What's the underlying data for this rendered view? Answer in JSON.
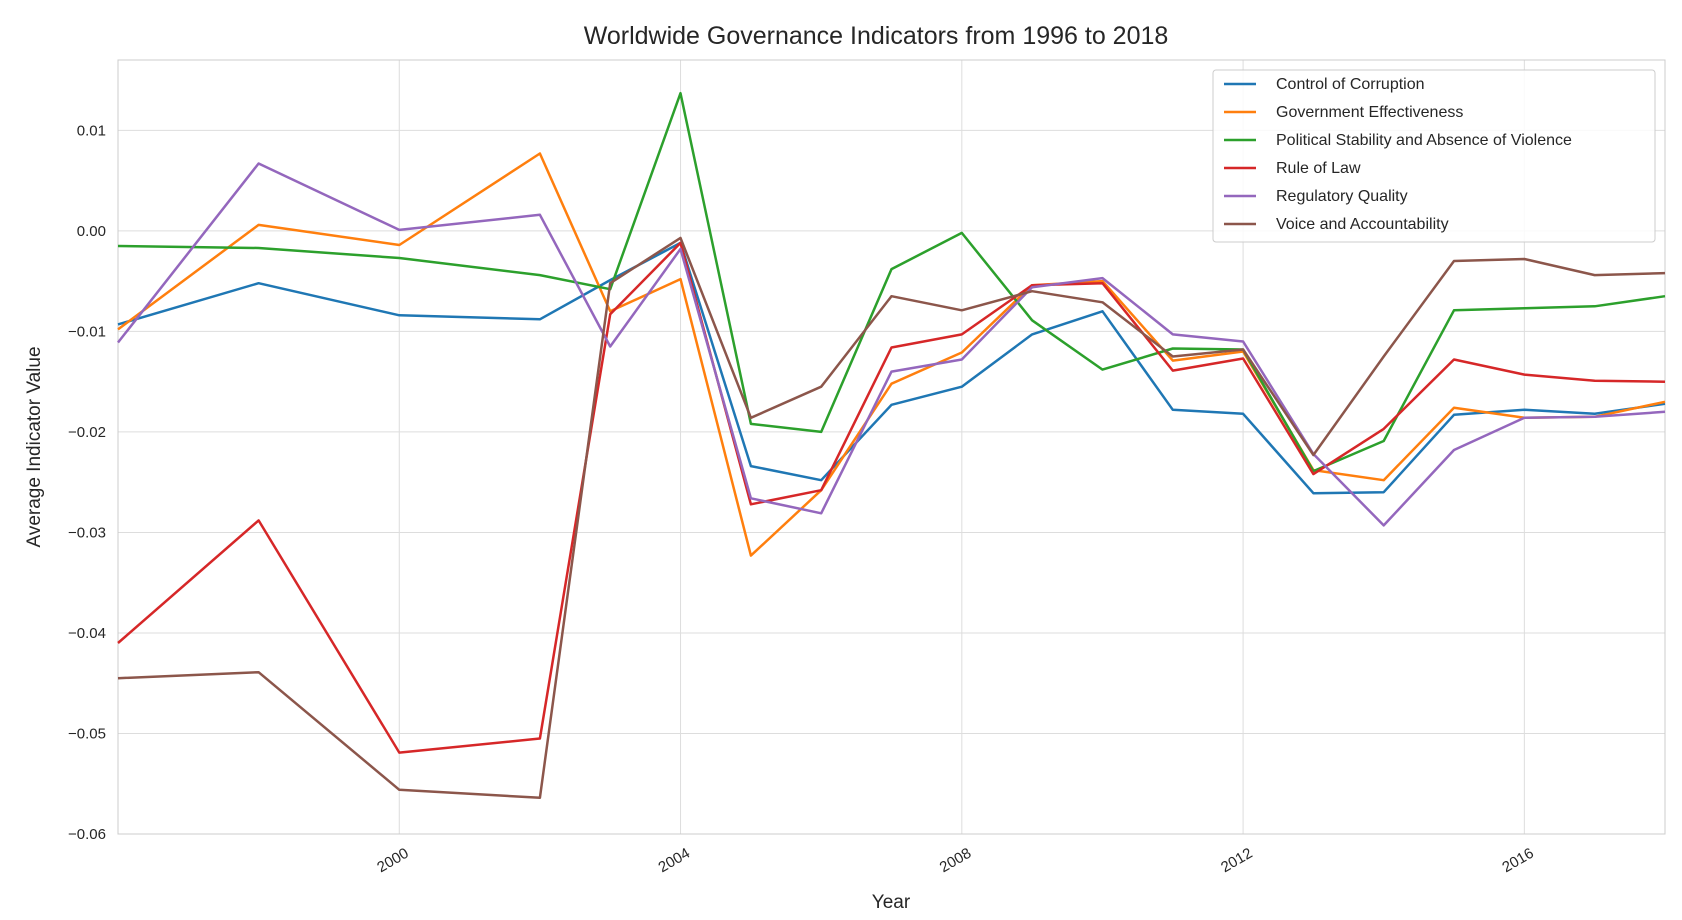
{
  "chart_data": {
    "type": "line",
    "title": "Worldwide Governance Indicators from 1996 to 2018",
    "xlabel": "Year",
    "ylabel": "Average Indicator Value",
    "xlim": [
      1996,
      2018
    ],
    "ylim": [
      -0.06,
      0.017
    ],
    "x_ticks": [
      2000,
      2004,
      2008,
      2012,
      2016
    ],
    "y_ticks": [
      0.01,
      0.0,
      -0.01,
      -0.02,
      -0.03,
      -0.04,
      -0.05,
      -0.06
    ],
    "y_tick_labels": [
      "0.01",
      "0.00",
      "−0.01",
      "−0.02",
      "−0.03",
      "−0.04",
      "−0.05",
      "−0.06"
    ],
    "grid": true,
    "legend_position": "top-right",
    "x": [
      1996,
      1998,
      2000,
      2002,
      2003,
      2004,
      2005,
      2006,
      2007,
      2008,
      2009,
      2010,
      2011,
      2012,
      2013,
      2014,
      2015,
      2016,
      2017,
      2018
    ],
    "series": [
      {
        "name": "Control of Corruption",
        "color": "#1f77b4",
        "values": [
          -0.0093,
          -0.0052,
          -0.0084,
          -0.0088,
          -0.0049,
          -0.0012,
          -0.0234,
          -0.0248,
          -0.0173,
          -0.0155,
          -0.0103,
          -0.008,
          -0.0178,
          -0.0182,
          -0.0261,
          -0.026,
          -0.0183,
          -0.0178,
          -0.0182,
          -0.0172
        ]
      },
      {
        "name": "Government Effectiveness",
        "color": "#ff7f0e",
        "values": [
          -0.0098,
          0.0006,
          -0.0014,
          0.0077,
          -0.008,
          -0.0048,
          -0.0323,
          -0.0258,
          -0.0152,
          -0.0121,
          -0.0054,
          -0.005,
          -0.0129,
          -0.012,
          -0.0238,
          -0.0248,
          -0.0176,
          -0.0186,
          -0.0185,
          -0.017
        ]
      },
      {
        "name": "Political Stability and Absence of Violence",
        "color": "#2ca02c",
        "values": [
          -0.0015,
          -0.0017,
          -0.0027,
          -0.0044,
          -0.0058,
          0.0137,
          -0.0192,
          -0.02,
          -0.0038,
          -0.0002,
          -0.0089,
          -0.0138,
          -0.0117,
          -0.0118,
          -0.0239,
          -0.0209,
          -0.0079,
          -0.0077,
          -0.0075,
          -0.0065
        ]
      },
      {
        "name": "Rule of Law",
        "color": "#d62728",
        "values": [
          -0.041,
          -0.0288,
          -0.0519,
          -0.0505,
          -0.0083,
          -0.0012,
          -0.0272,
          -0.0258,
          -0.0116,
          -0.0103,
          -0.0054,
          -0.0052,
          -0.0139,
          -0.0127,
          -0.0242,
          -0.0197,
          -0.0128,
          -0.0143,
          -0.0149,
          -0.015
        ]
      },
      {
        "name": "Regulatory Quality",
        "color": "#9467bd",
        "values": [
          -0.0111,
          0.0067,
          0.0001,
          0.0016,
          -0.0115,
          -0.0018,
          -0.0266,
          -0.0281,
          -0.014,
          -0.0128,
          -0.0056,
          -0.0047,
          -0.0103,
          -0.011,
          -0.0222,
          -0.0293,
          -0.0218,
          -0.0186,
          -0.0185,
          -0.018
        ]
      },
      {
        "name": "Voice and Accountability",
        "color": "#8c564b",
        "values": [
          -0.0445,
          -0.0439,
          -0.0556,
          -0.0564,
          -0.0052,
          -0.0007,
          -0.0186,
          -0.0155,
          -0.0065,
          -0.0079,
          -0.006,
          -0.0071,
          -0.0125,
          -0.0118,
          -0.0223,
          -0.0125,
          -0.003,
          -0.0028,
          -0.0044,
          -0.0042
        ]
      }
    ]
  }
}
